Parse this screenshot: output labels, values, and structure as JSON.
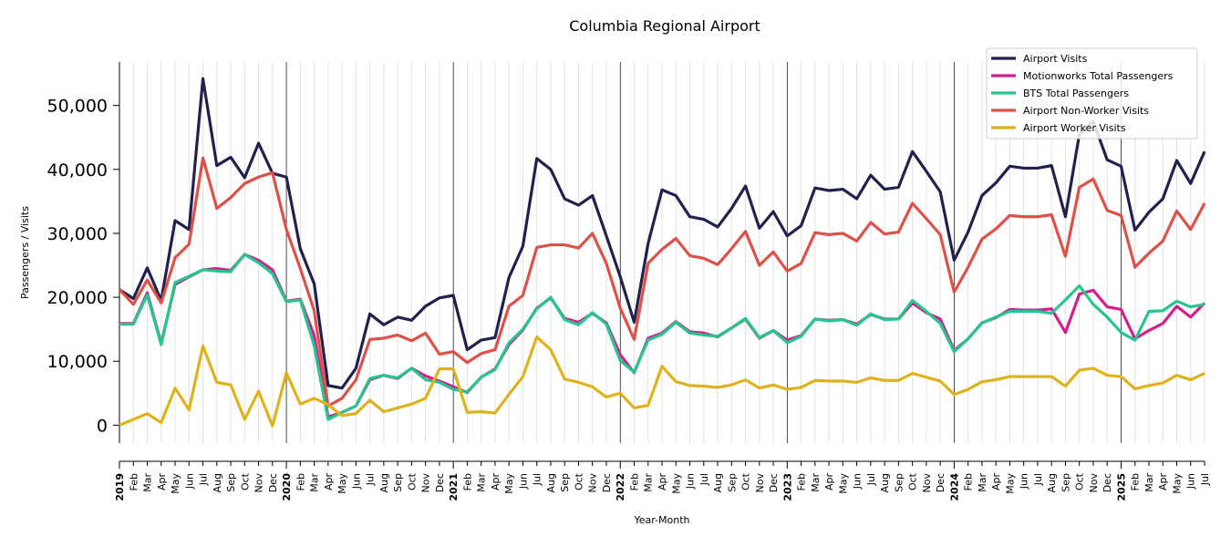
{
  "chart_data": {
    "type": "line",
    "title": "Columbia Regional Airport",
    "xlabel": "Year-Month",
    "ylabel": "Passengers / Visits",
    "ylim": [
      -2800,
      56800
    ],
    "yticks": [
      0,
      10000,
      20000,
      30000,
      40000,
      50000
    ],
    "ytick_labels": [
      "0",
      "10,000",
      "20,000",
      "30,000",
      "40,000",
      "50,000"
    ],
    "x_tick_labels": [
      "2019",
      "Feb",
      "Mar",
      "Apr",
      "May",
      "Jun",
      "Jul",
      "Aug",
      "Sep",
      "Oct",
      "Nov",
      "Dec",
      "2020",
      "Feb",
      "Mar",
      "Apr",
      "May",
      "Jun",
      "Jul",
      "Aug",
      "Sep",
      "Oct",
      "Nov",
      "Dec",
      "2021",
      "Feb",
      "Mar",
      "Apr",
      "May",
      "Jun",
      "Jul",
      "Aug",
      "Sep",
      "Oct",
      "Nov",
      "Dec",
      "2022",
      "Feb",
      "Mar",
      "Apr",
      "May",
      "Jun",
      "Jul",
      "Aug",
      "Sep",
      "Oct",
      "Nov",
      "Dec",
      "2023",
      "Feb",
      "Mar",
      "Apr",
      "May",
      "Jun",
      "Jul",
      "Aug",
      "Sep",
      "Oct",
      "Nov",
      "Dec",
      "2024",
      "Feb",
      "Mar",
      "Apr",
      "May",
      "Jun",
      "Jul",
      "Aug",
      "Sep",
      "Oct",
      "Nov",
      "Dec",
      "2025",
      "Feb",
      "Mar",
      "Apr",
      "May",
      "Jun",
      "Jul"
    ],
    "legend_position": "top-right",
    "grid": "vertical monthly lines, darker lines at each year start",
    "series": [
      {
        "name": "Airport Visits",
        "color": "#20214f",
        "values": [
          21200,
          19800,
          24600,
          19500,
          32000,
          30600,
          54200,
          40600,
          41900,
          38700,
          44100,
          39400,
          38800,
          27600,
          22100,
          6200,
          5800,
          8900,
          17400,
          15700,
          16900,
          16400,
          18600,
          19900,
          20300,
          11800,
          13300,
          13700,
          23100,
          28000,
          41700,
          40000,
          35400,
          34400,
          35900,
          29600,
          23200,
          16100,
          28400,
          36800,
          35900,
          32600,
          32200,
          31000,
          33900,
          37400,
          30800,
          33400,
          29600,
          31200,
          37100,
          36700,
          36900,
          35400,
          39100,
          36900,
          37200,
          42800,
          39700,
          36500,
          25800,
          30200,
          35900,
          37900,
          40500,
          40200,
          40200,
          40600,
          32600,
          45500,
          47500,
          41500,
          40500,
          30500,
          33300,
          35400,
          41400,
          37800,
          42800
        ]
      },
      {
        "name": "Motionworks Total Passengers",
        "color": "#d41d8f",
        "values": [
          15900,
          15900,
          20700,
          12800,
          22000,
          23200,
          24300,
          24500,
          24200,
          26700,
          25800,
          24300,
          19400,
          19700,
          14000,
          1300,
          2000,
          3000,
          7100,
          7800,
          7300,
          8900,
          7700,
          6900,
          6000,
          5100,
          7500,
          8800,
          12600,
          14900,
          18300,
          19900,
          16700,
          16100,
          17500,
          16000,
          11000,
          8200,
          13600,
          14400,
          16200,
          14600,
          14400,
          13800,
          15200,
          16600,
          13600,
          14800,
          13300,
          14000,
          16600,
          16400,
          16500,
          15800,
          17300,
          16600,
          16600,
          19100,
          17600,
          16600,
          11700,
          13500,
          16000,
          16800,
          18100,
          18000,
          18000,
          18200,
          14500,
          20500,
          21100,
          18500,
          18100,
          13500,
          14800,
          15900,
          18600,
          16900,
          19100
        ]
      },
      {
        "name": "BTS Total Passengers",
        "color": "#26c48f",
        "values": [
          15800,
          15800,
          20400,
          12600,
          22300,
          23300,
          24300,
          24100,
          24000,
          26700,
          25400,
          23700,
          19300,
          19600,
          12400,
          900,
          2000,
          3000,
          7300,
          7800,
          7400,
          8900,
          7100,
          6700,
          5600,
          5200,
          7500,
          8700,
          12900,
          15000,
          18200,
          20000,
          16500,
          15700,
          17600,
          15800,
          10100,
          8300,
          13300,
          14200,
          16100,
          14400,
          14100,
          13900,
          15200,
          16700,
          13700,
          14800,
          12900,
          13900,
          16600,
          16300,
          16500,
          15600,
          17400,
          16500,
          16600,
          19500,
          17800,
          15900,
          11500,
          13500,
          16000,
          16900,
          17800,
          17800,
          17800,
          17500,
          19600,
          21800,
          18900,
          16900,
          14500,
          13300,
          17800,
          17900,
          19400,
          18500,
          18900
        ]
      },
      {
        "name": "Airport Non-Worker Visits",
        "color": "#de5048",
        "values": [
          21200,
          18900,
          22700,
          19100,
          26200,
          28300,
          41800,
          33900,
          35600,
          37800,
          38800,
          39500,
          30600,
          24500,
          17900,
          3000,
          4200,
          7100,
          13400,
          13600,
          14100,
          13200,
          14400,
          11100,
          11500,
          9800,
          11200,
          11800,
          18600,
          20300,
          27800,
          28200,
          28200,
          27700,
          30000,
          25300,
          18300,
          13400,
          25300,
          27500,
          29200,
          26500,
          26100,
          25100,
          27600,
          30300,
          25000,
          27100,
          24100,
          25300,
          30100,
          29800,
          30000,
          28800,
          31700,
          29900,
          30200,
          34700,
          32300,
          29800,
          20800,
          24700,
          29100,
          30700,
          32800,
          32600,
          32600,
          32900,
          26400,
          37200,
          38500,
          33600,
          32800,
          24700,
          26900,
          28800,
          33500,
          30600,
          34700
        ]
      },
      {
        "name": "Airport Worker Visits",
        "color": "#dfb11b",
        "values": [
          0,
          900,
          1800,
          400,
          5800,
          2400,
          12400,
          6700,
          6300,
          900,
          5300,
          -100,
          8200,
          3300,
          4200,
          3200,
          1500,
          1800,
          3900,
          2100,
          2700,
          3300,
          4200,
          8800,
          8800,
          2000,
          2100,
          1900,
          4800,
          7600,
          13800,
          11800,
          7200,
          6700,
          6000,
          4400,
          5000,
          2700,
          3100,
          9200,
          6800,
          6200,
          6100,
          5900,
          6300,
          7100,
          5800,
          6300,
          5600,
          5900,
          7000,
          6900,
          6900,
          6700,
          7400,
          7000,
          7000,
          8100,
          7500,
          6900,
          4800,
          5600,
          6800,
          7100,
          7600,
          7600,
          7600,
          7600,
          6100,
          8600,
          8900,
          7800,
          7600,
          5700,
          6200,
          6600,
          7800,
          7100,
          8100
        ]
      }
    ]
  }
}
